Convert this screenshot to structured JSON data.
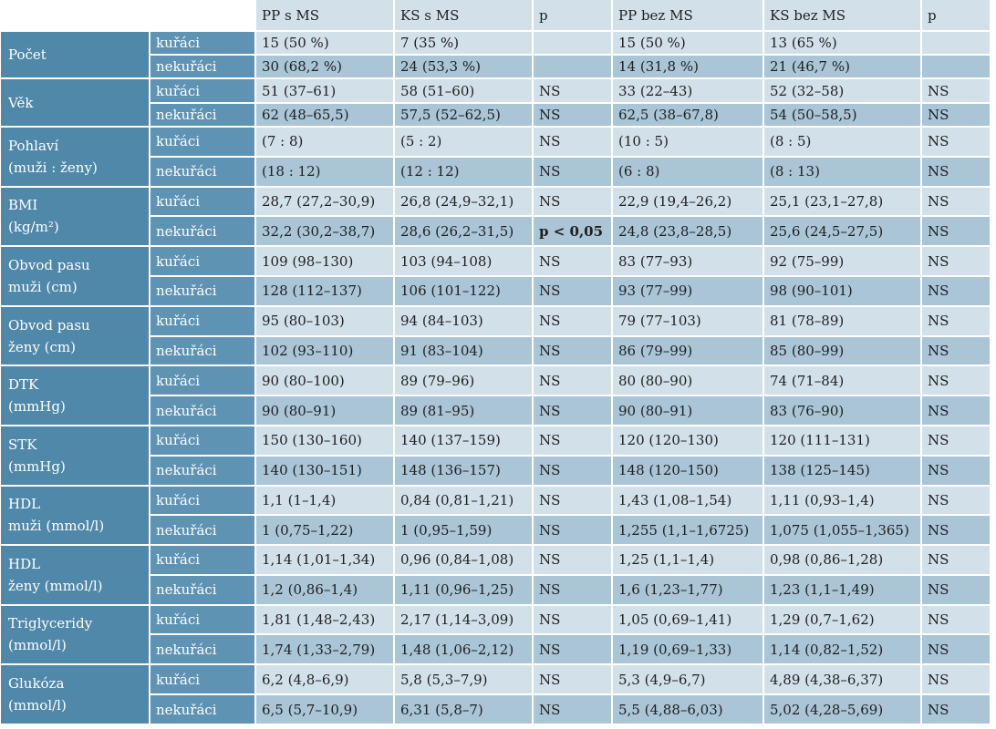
{
  "headers": [
    "",
    "",
    "PP s MS",
    "KS s MS",
    "p",
    "PP bez MS",
    "KS bez MS",
    "p"
  ],
  "groups": [
    {
      "label": [
        "Počet"
      ],
      "rows": [
        [
          "kuřáci",
          "15 (50 %)",
          "7 (35 %)",
          "",
          "15 (50 %)",
          "13 (65 %)",
          ""
        ],
        [
          "nekuřáci",
          "30 (68,2 %)",
          "24 (53,3 %)",
          "",
          "14 (31,8 %)",
          "21 (46,7 %)",
          ""
        ]
      ]
    },
    {
      "label": [
        "Věk"
      ],
      "rows": [
        [
          "kuřáci",
          "51 (37–61)",
          "58 (51–60)",
          "NS",
          "33 (22–43)",
          "52 (32–58)",
          "NS"
        ],
        [
          "nekuřáci",
          "62 (48–65,5)",
          "57,5 (52–62,5)",
          "NS",
          "62,5 (38–67,8)",
          "54 (50–58,5)",
          "NS"
        ]
      ]
    },
    {
      "label": [
        "Pohlaví",
        "(muži : ženy)"
      ],
      "rows": [
        [
          "kuřáci",
          "(7 : 8)",
          "(5 : 2)",
          "NS",
          "(10 : 5)",
          "(8 : 5)",
          "NS"
        ],
        [
          "nekuřáci",
          "(18 : 12)",
          "(12 : 12)",
          "NS",
          "(6 : 8)",
          "(8 : 13)",
          "NS"
        ]
      ]
    },
    {
      "label": [
        "BMI",
        "(kg/m²)"
      ],
      "rows": [
        [
          "kuřáci",
          "28,7 (27,2–30,9)",
          "26,8 (24,9–32,1)",
          "NS",
          "22,9 (19,4–26,2)",
          "25,1 (23,1–27,8)",
          "NS"
        ],
        [
          "nekuřáci",
          "32,2 (30,2–38,7)",
          "28,6 (26,2–31,5)",
          "p < 0,05",
          "24,8 (23,8–28,5)",
          "25,6 (24,5–27,5)",
          "NS"
        ]
      ]
    },
    {
      "label": [
        "Obvod pasu",
        "muži (cm)"
      ],
      "rows": [
        [
          "kuřáci",
          "109 (98–130)",
          "103 (94–108)",
          "NS",
          "83 (77–93)",
          "92 (75–99)",
          "NS"
        ],
        [
          "nekuřáci",
          "128 (112–137)",
          "106 (101–122)",
          "NS",
          "93 (77–99)",
          "98 (90–101)",
          "NS"
        ]
      ]
    },
    {
      "label": [
        "Obvod pasu",
        "ženy (cm)"
      ],
      "rows": [
        [
          "kuřáci",
          "95 (80–103)",
          "94 (84–103)",
          "NS",
          "79 (77–103)",
          "81 (78–89)",
          "NS"
        ],
        [
          "nekuřáci",
          "102 (93–110)",
          "91 (83–104)",
          "NS",
          "86 (79–99)",
          "85 (80–99)",
          "NS"
        ]
      ]
    },
    {
      "label": [
        "DTK",
        "(mmHg)"
      ],
      "rows": [
        [
          "kuřáci",
          "90 (80–100)",
          "89 (79–96)",
          "NS",
          "80 (80–90)",
          "74 (71–84)",
          "NS"
        ],
        [
          "nekuřáci",
          "90 (80–91)",
          "89 (81–95)",
          "NS",
          "90 (80–91)",
          "83 (76–90)",
          "NS"
        ]
      ]
    },
    {
      "label": [
        "STK",
        "(mmHg)"
      ],
      "rows": [
        [
          "kuřáci",
          "150 (130–160)",
          "140 (137–159)",
          "NS",
          "120 (120–130)",
          "120 (111–131)",
          "NS"
        ],
        [
          "nekuřáci",
          "140 (130–151)",
          "148 (136–157)",
          "NS",
          "148 (120–150)",
          "138 (125–145)",
          "NS"
        ]
      ]
    },
    {
      "label": [
        "HDL",
        "muži (mmol/l)"
      ],
      "rows": [
        [
          "kuřáci",
          "1,1 (1–1,4)",
          "0,84 (0,81–1,21)",
          "NS",
          "1,43 (1,08–1,54)",
          "1,11 (0,93–1,4)",
          "NS"
        ],
        [
          "nekuřáci",
          "1 (0,75–1,22)",
          "1 (0,95–1,59)",
          "NS",
          "1,255 (1,1–1,6725)",
          "1,075 (1,055–1,365)",
          "NS"
        ]
      ]
    },
    {
      "label": [
        "HDL",
        "ženy (mmol/l)"
      ],
      "rows": [
        [
          "kuřáci",
          "1,14 (1,01–1,34)",
          "0,96 (0,84–1,08)",
          "NS",
          "1,25 (1,1–1,4)",
          "0,98 (0,86–1,28)",
          "NS"
        ],
        [
          "nekuřáci",
          "1,2 (0,86–1,4)",
          "1,11 (0,96–1,25)",
          "NS",
          "1,6 (1,23–1,77)",
          "1,23 (1,1–1,49)",
          "NS"
        ]
      ]
    },
    {
      "label": [
        "Triglyceridy",
        "(mmol/l)"
      ],
      "rows": [
        [
          "kuřáci",
          "1,81 (1,48–2,43)",
          "2,17 (1,14–3,09)",
          "NS",
          "1,05 (0,69–1,41)",
          "1,29 (0,7–1,62)",
          "NS"
        ],
        [
          "nekuřáci",
          "1,74 (1,33–2,79)",
          "1,48 (1,06–2,12)",
          "NS",
          "1,19 (0,69–1,33)",
          "1,14 (0,82–1,52)",
          "NS"
        ]
      ]
    },
    {
      "label": [
        "Glukóza",
        "(mmol/l)"
      ],
      "rows": [
        [
          "kuřáci",
          "6,2 (4,8–6,9)",
          "5,8 (5,3–7,9)",
          "NS",
          "5,3 (4,9–6,7)",
          "4,89 (4,38–6,37)",
          "NS"
        ],
        [
          "nekuřáci",
          "6,5 (5,7–10,9)",
          "6,31 (5,8–7)",
          "NS",
          "5,5 (4,88–6,03)",
          "5,02 (4,28–5,69)",
          "NS"
        ]
      ]
    }
  ]
}
